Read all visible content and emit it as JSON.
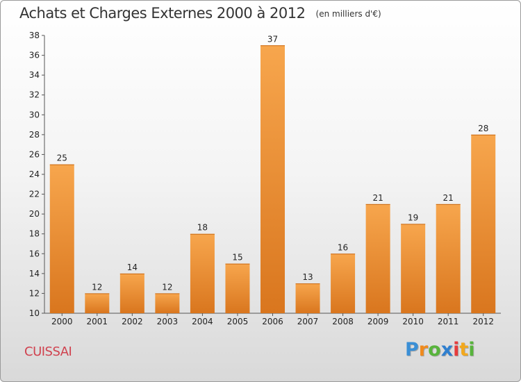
{
  "header": {
    "title": "Achats et Charges Externes 2000 à 2012",
    "unit": "(en milliers d'€)"
  },
  "footer": {
    "commune": "CUISSAI",
    "logo_letters": [
      {
        "ch": "P",
        "color": "#3a8fd6"
      },
      {
        "ch": "r",
        "color": "#f08a1c"
      },
      {
        "ch": "o",
        "color": "#58b43c"
      },
      {
        "ch": "x",
        "color": "#2f7fcf"
      },
      {
        "ch": "i",
        "color": "#e63c3c"
      },
      {
        "ch": "t",
        "color": "#f2a81d"
      },
      {
        "ch": "i",
        "color": "#58b43c"
      }
    ]
  },
  "colors": {
    "bar_top": "#f7a64d",
    "bar_bottom": "#d9761e"
  },
  "chart_data": {
    "type": "bar",
    "title": "Achats et Charges Externes 2000 à 2012",
    "subtitle": "(en milliers d'€)",
    "categories": [
      "2000",
      "2001",
      "2002",
      "2003",
      "2004",
      "2005",
      "2006",
      "2007",
      "2008",
      "2009",
      "2010",
      "2011",
      "2012"
    ],
    "values": [
      25,
      12,
      14,
      12,
      18,
      15,
      37,
      13,
      16,
      21,
      19,
      21,
      28
    ],
    "ylim": [
      10,
      38
    ],
    "yticks": [
      10,
      12,
      14,
      16,
      18,
      20,
      22,
      24,
      26,
      28,
      30,
      32,
      34,
      36,
      38
    ],
    "grid": false,
    "xlabel": "",
    "ylabel": ""
  }
}
